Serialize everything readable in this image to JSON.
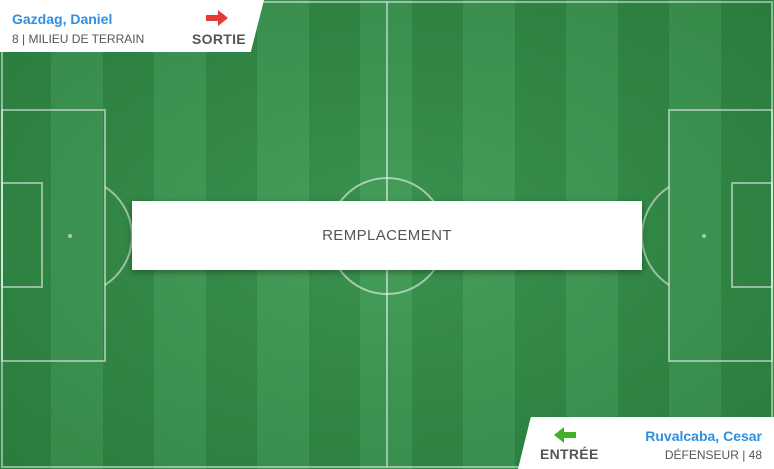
{
  "substitution": {
    "banner_text": "REMPLACEMENT",
    "player_out": {
      "name": "Gazdag, Daniel",
      "info": "8 | MILIEU DE TERRAIN",
      "direction_label": "SORTIE",
      "arrow_icon": "arrow-right-icon",
      "arrow_color": "#e53935"
    },
    "player_in": {
      "name": "Ruvalcaba, Cesar",
      "info": "DÉFENSEUR | 48",
      "direction_label": "ENTRÉE",
      "arrow_icon": "arrow-left-icon",
      "arrow_color": "#43b02a"
    }
  },
  "colors": {
    "name_blue": "#2f8fe0",
    "pitch_dark": "#2e8a43",
    "pitch_light": "#3a9850"
  }
}
